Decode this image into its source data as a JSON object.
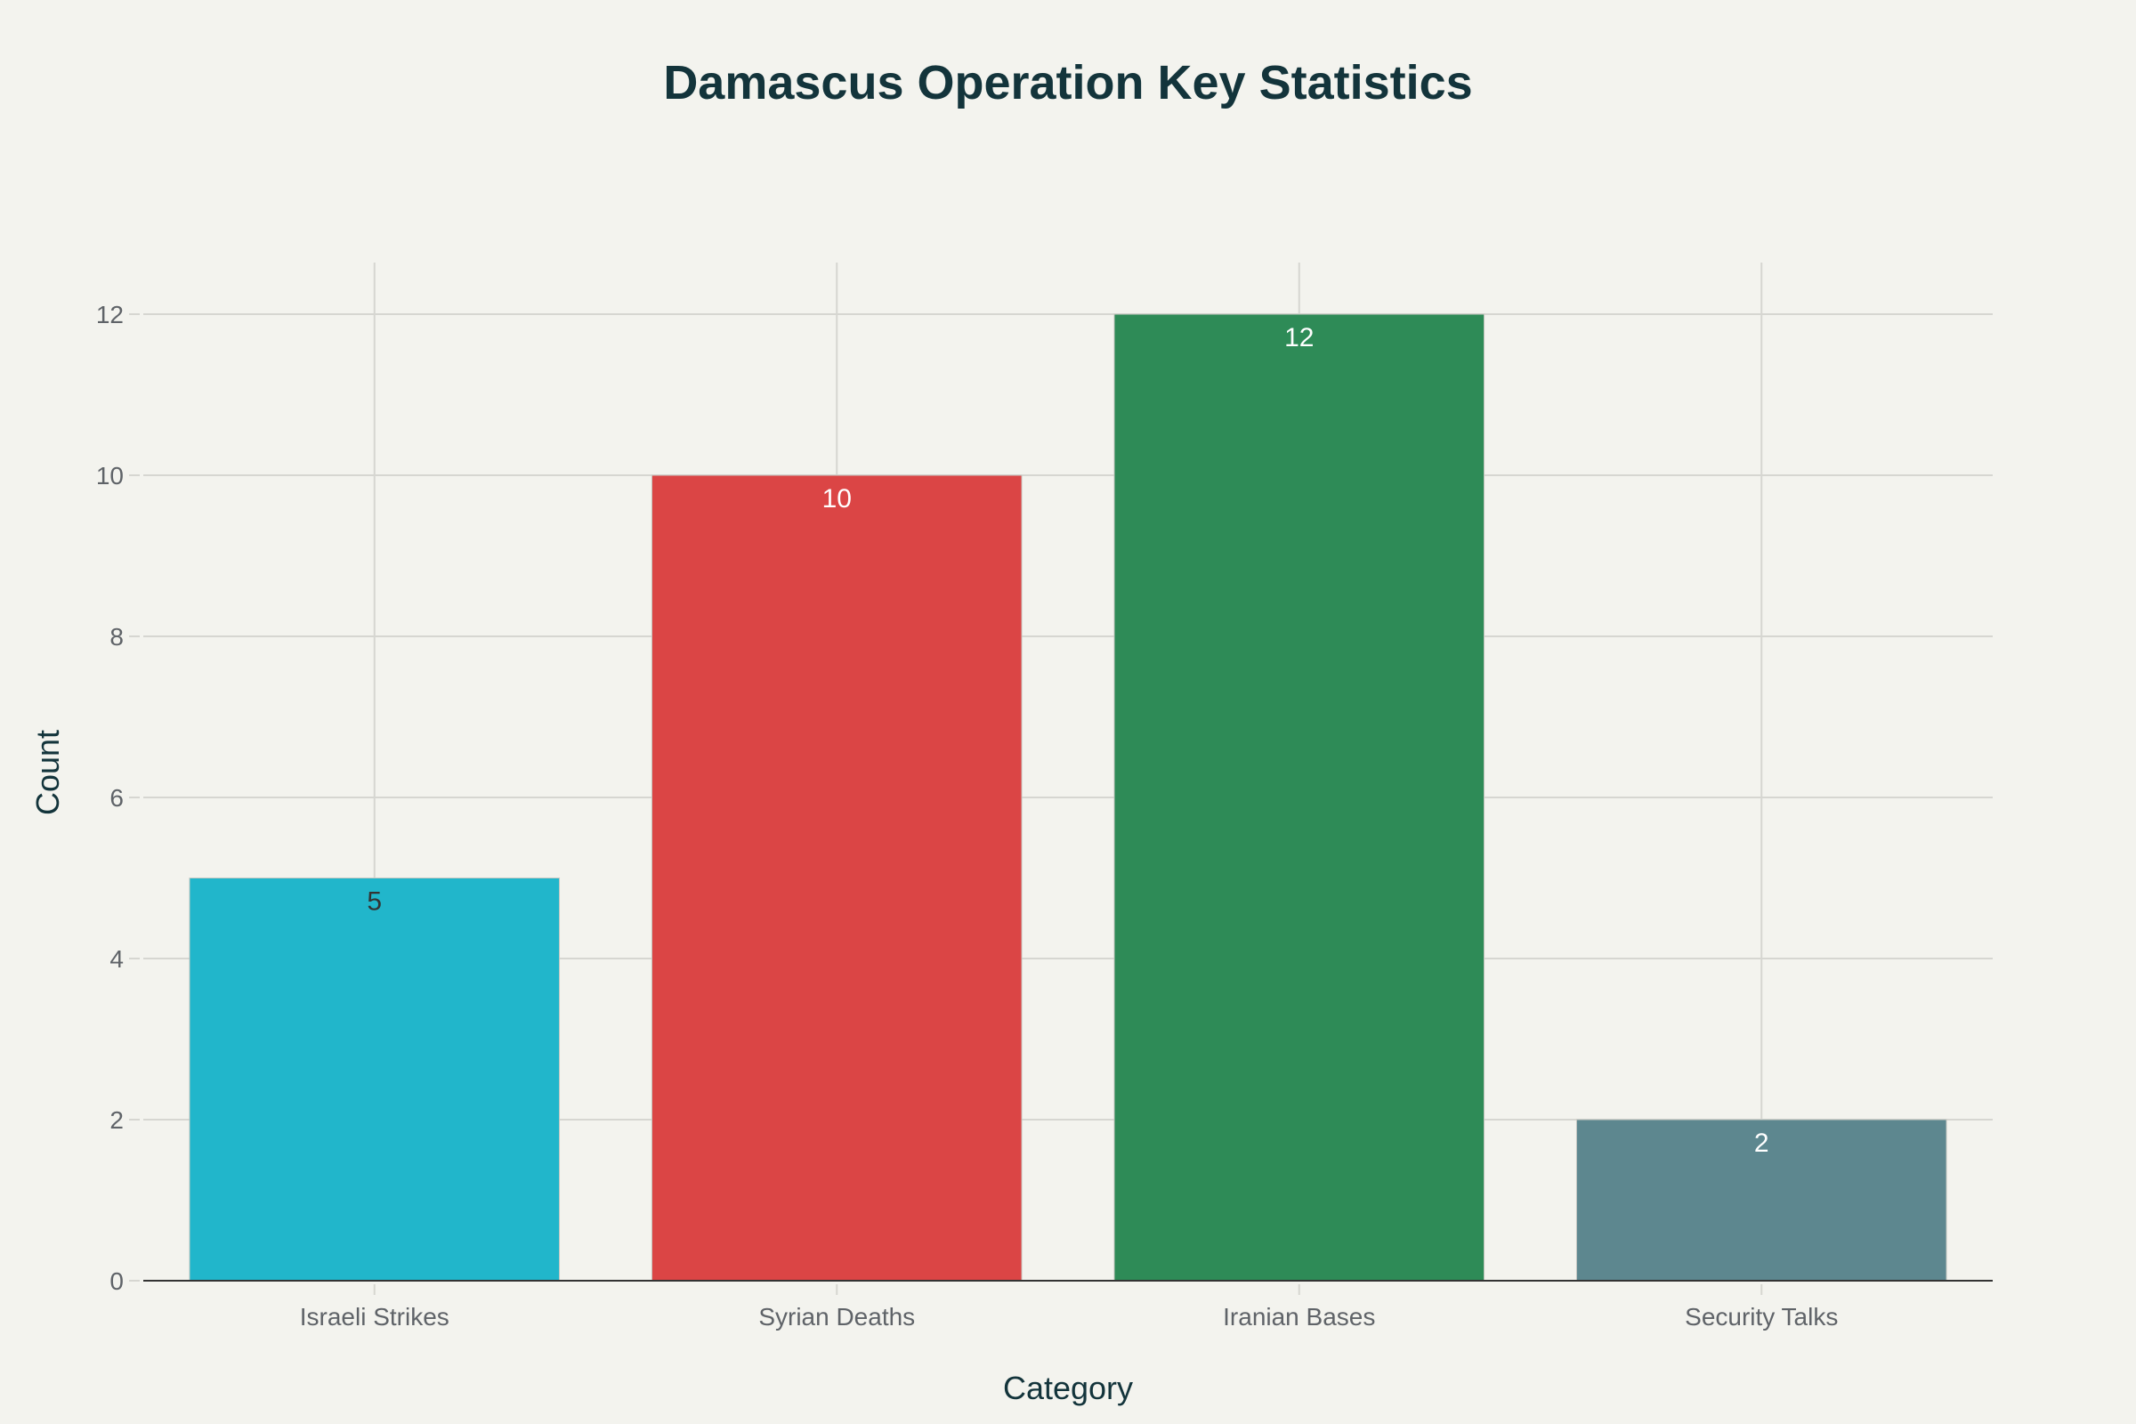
{
  "chart_data": {
    "type": "bar",
    "title": "Damascus Operation Key Statistics",
    "xlabel": "Category",
    "ylabel": "Count",
    "categories": [
      "Israeli Strikes",
      "Syrian Deaths",
      "Iranian Bases",
      "Security Talks"
    ],
    "values": [
      5,
      10,
      12,
      2
    ],
    "data_labels": [
      "5",
      "10",
      "12",
      "2"
    ],
    "colors": [
      "#21B6CB",
      "#DB4545",
      "#2E8B57",
      "#5D878F"
    ],
    "label_colors": [
      "#333333",
      "#FFFFFF",
      "#FFFFFF",
      "#FFFFFF"
    ],
    "ylim": [
      0,
      12.6
    ],
    "yticks": [
      0,
      2,
      4,
      6,
      8,
      10,
      12
    ],
    "grid": true,
    "legend": "none"
  }
}
